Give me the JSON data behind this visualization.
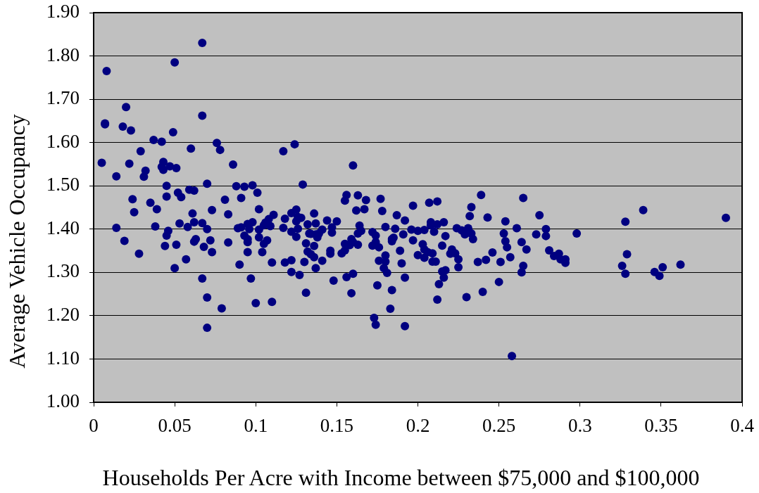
{
  "chart_data": {
    "type": "scatter",
    "xlabel": "Households Per Acre with Income between $75,000 and $100,000",
    "ylabel": "Average Vehicle Occupancy",
    "x": [
      0.067,
      0.05,
      0.008,
      0.02,
      0.007,
      0.007,
      0.018,
      0.023,
      0.067,
      0.049,
      0.037,
      0.042,
      0.06,
      0.076,
      0.078,
      0.029,
      0.005,
      0.022,
      0.043,
      0.042,
      0.043,
      0.047,
      0.051,
      0.086,
      0.014,
      0.032,
      0.031,
      0.045,
      0.088,
      0.093,
      0.07,
      0.059,
      0.062,
      0.052,
      0.054,
      0.045,
      0.024,
      0.035,
      0.081,
      0.091,
      0.098,
      0.025,
      0.039,
      0.061,
      0.073,
      0.083,
      0.014,
      0.038,
      0.046,
      0.045,
      0.053,
      0.058,
      0.062,
      0.067,
      0.07,
      0.019,
      0.028,
      0.044,
      0.051,
      0.063,
      0.062,
      0.072,
      0.068,
      0.073,
      0.083,
      0.057,
      0.05,
      0.09,
      0.067,
      0.07,
      0.079,
      0.07,
      0.089,
      0.091,
      0.095,
      0.097,
      0.117,
      0.124,
      0.16,
      0.101,
      0.129,
      0.102,
      0.111,
      0.095,
      0.098,
      0.096,
      0.093,
      0.095,
      0.095,
      0.1,
      0.11,
      0.102,
      0.102,
      0.105,
      0.106,
      0.108,
      0.109,
      0.105,
      0.107,
      0.104,
      0.11,
      0.118,
      0.117,
      0.122,
      0.125,
      0.122,
      0.125,
      0.126,
      0.128,
      0.125,
      0.126,
      0.118,
      0.122,
      0.122,
      0.127,
      0.13,
      0.131,
      0.132,
      0.137,
      0.136,
      0.133,
      0.134,
      0.137,
      0.138,
      0.141,
      0.139,
      0.131,
      0.136,
      0.132,
      0.134,
      0.136,
      0.141,
      0.137,
      0.144,
      0.15,
      0.147,
      0.147,
      0.146,
      0.146,
      0.153,
      0.155,
      0.148,
      0.156,
      0.155,
      0.163,
      0.168,
      0.167,
      0.162,
      0.177,
      0.178,
      0.197,
      0.164,
      0.165,
      0.163,
      0.155,
      0.159,
      0.16,
      0.158,
      0.163,
      0.156,
      0.16,
      0.159,
      0.172,
      0.174,
      0.174,
      0.172,
      0.176,
      0.18,
      0.186,
      0.187,
      0.192,
      0.191,
      0.184,
      0.185,
      0.184,
      0.18,
      0.176,
      0.18,
      0.179,
      0.181,
      0.189,
      0.19,
      0.192,
      0.175,
      0.184,
      0.183,
      0.173,
      0.174,
      0.192,
      0.196,
      0.197,
      0.2,
      0.2,
      0.239,
      0.265,
      0.207,
      0.212,
      0.233,
      0.232,
      0.243,
      0.275,
      0.208,
      0.208,
      0.212,
      0.216,
      0.204,
      0.21,
      0.217,
      0.224,
      0.227,
      0.229,
      0.231,
      0.233,
      0.234,
      0.254,
      0.253,
      0.261,
      0.273,
      0.279,
      0.279,
      0.298,
      0.203,
      0.204,
      0.206,
      0.209,
      0.204,
      0.209,
      0.211,
      0.215,
      0.221,
      0.22,
      0.223,
      0.225,
      0.225,
      0.215,
      0.217,
      0.216,
      0.213,
      0.212,
      0.23,
      0.237,
      0.242,
      0.246,
      0.24,
      0.251,
      0.25,
      0.254,
      0.255,
      0.257,
      0.264,
      0.267,
      0.265,
      0.264,
      0.258,
      0.281,
      0.284,
      0.287,
      0.288,
      0.291,
      0.291,
      0.339,
      0.328,
      0.39,
      0.329,
      0.326,
      0.328,
      0.346,
      0.349,
      0.351,
      0.362
    ],
    "values": [
      1.83,
      1.785,
      1.765,
      1.682,
      1.642,
      1.644,
      1.637,
      1.628,
      1.662,
      1.624,
      1.606,
      1.602,
      1.586,
      1.599,
      1.583,
      1.58,
      1.553,
      1.551,
      1.555,
      1.544,
      1.537,
      1.545,
      1.541,
      1.549,
      1.522,
      1.535,
      1.521,
      1.5,
      1.499,
      1.498,
      1.505,
      1.491,
      1.489,
      1.484,
      1.474,
      1.475,
      1.469,
      1.461,
      1.468,
      1.472,
      1.501,
      1.439,
      1.446,
      1.436,
      1.444,
      1.434,
      1.403,
      1.406,
      1.396,
      1.385,
      1.413,
      1.405,
      1.416,
      1.414,
      1.4,
      1.373,
      1.343,
      1.361,
      1.364,
      1.377,
      1.371,
      1.374,
      1.359,
      1.347,
      1.369,
      1.33,
      1.31,
      1.318,
      1.286,
      1.242,
      1.217,
      1.172,
      1.402,
      1.404,
      1.347,
      1.286,
      1.58,
      1.596,
      1.547,
      1.484,
      1.503,
      1.446,
      1.433,
      1.412,
      1.416,
      1.4,
      1.385,
      1.377,
      1.37,
      1.229,
      1.232,
      1.399,
      1.381,
      1.409,
      1.415,
      1.423,
      1.407,
      1.366,
      1.374,
      1.347,
      1.323,
      1.424,
      1.403,
      1.394,
      1.382,
      1.437,
      1.445,
      1.428,
      1.426,
      1.418,
      1.401,
      1.323,
      1.328,
      1.301,
      1.294,
      1.324,
      1.253,
      1.411,
      1.413,
      1.436,
      1.39,
      1.389,
      1.388,
      1.381,
      1.399,
      1.39,
      1.367,
      1.361,
      1.348,
      1.342,
      1.335,
      1.327,
      1.31,
      1.42,
      1.418,
      1.404,
      1.392,
      1.35,
      1.343,
      1.344,
      1.351,
      1.281,
      1.479,
      1.466,
      1.478,
      1.467,
      1.446,
      1.443,
      1.47,
      1.442,
      1.454,
      1.408,
      1.396,
      1.39,
      1.366,
      1.377,
      1.37,
      1.363,
      1.364,
      1.289,
      1.297,
      1.252,
      1.393,
      1.385,
      1.37,
      1.362,
      1.358,
      1.405,
      1.401,
      1.432,
      1.42,
      1.388,
      1.372,
      1.38,
      1.377,
      1.339,
      1.327,
      1.325,
      1.31,
      1.299,
      1.35,
      1.321,
      1.288,
      1.27,
      1.259,
      1.216,
      1.195,
      1.179,
      1.176,
      1.399,
      1.374,
      1.396,
      1.34,
      1.479,
      1.472,
      1.461,
      1.464,
      1.451,
      1.43,
      1.427,
      1.432,
      1.416,
      1.409,
      1.411,
      1.416,
      1.398,
      1.394,
      1.384,
      1.402,
      1.397,
      1.388,
      1.402,
      1.39,
      1.377,
      1.418,
      1.39,
      1.402,
      1.388,
      1.4,
      1.384,
      1.39,
      1.365,
      1.353,
      1.347,
      1.344,
      1.334,
      1.325,
      1.325,
      1.362,
      1.353,
      1.343,
      1.344,
      1.33,
      1.312,
      1.302,
      1.305,
      1.288,
      1.273,
      1.237,
      1.243,
      1.324,
      1.329,
      1.346,
      1.255,
      1.324,
      1.278,
      1.372,
      1.358,
      1.335,
      1.37,
      1.353,
      1.315,
      1.3,
      1.107,
      1.351,
      1.338,
      1.343,
      1.33,
      1.33,
      1.322,
      1.444,
      1.417,
      1.426,
      1.342,
      1.315,
      1.297,
      1.301,
      1.292,
      1.312,
      1.318
    ],
    "color": "#000080",
    "marker": "circle",
    "grid": "y",
    "xlim": [
      0,
      0.4
    ],
    "xticks": [
      0,
      0.05,
      0.1,
      0.15,
      0.2,
      0.25,
      0.3,
      0.35,
      0.4
    ],
    "ylim": [
      1,
      1.9
    ],
    "yticks": [
      {
        "value": 1,
        "label": "1.00"
      },
      {
        "value": 1.1,
        "label": "1.10"
      },
      {
        "value": 1.2,
        "label": "1.20"
      },
      {
        "value": 1.3,
        "label": "1.30"
      },
      {
        "value": 1.4,
        "label": "1.40"
      },
      {
        "value": 1.5,
        "label": "1.50"
      },
      {
        "value": 1.6,
        "label": "1.60"
      },
      {
        "value": 1.7,
        "label": "1.70"
      },
      {
        "value": 1.8,
        "label": "1.80"
      },
      {
        "value": 1.9,
        "label": "1.90"
      }
    ]
  }
}
